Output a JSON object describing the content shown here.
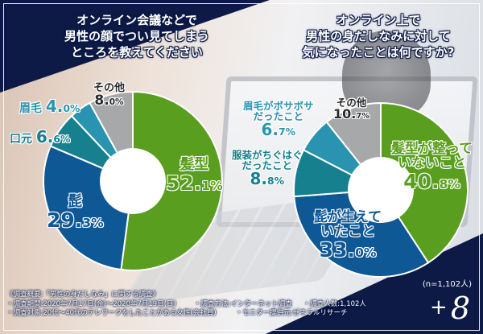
{
  "colors": {
    "navy": "#0d1a46",
    "green": "#5a9e1f",
    "blue": "#0f5896",
    "teal": "#17808f",
    "light_teal": "#2a94b0",
    "gray": "#a7a8aa",
    "label_teal": "#1d7f93"
  },
  "left_chart": {
    "title_lines": [
      "オンライン会議などで",
      "男性の顔でつい見てしまう",
      "ところを教えてください"
    ],
    "segments": [
      {
        "label": "髪型",
        "value": "52.1",
        "pct_int": "52.",
        "pct_dec": "1%"
      },
      {
        "label": "髭",
        "value": "29.3",
        "pct_int": "29.",
        "pct_dec": "3%"
      },
      {
        "label": "口元",
        "value": "6.6",
        "pct_int": "6.",
        "pct_dec": "6%"
      },
      {
        "label": "眉毛",
        "value": "4.0",
        "pct_int": "4.",
        "pct_dec": "0%"
      },
      {
        "label": "その他",
        "value": "8.0",
        "pct_int": "8.",
        "pct_dec": "0%"
      }
    ]
  },
  "right_chart": {
    "title_lines": [
      "オンライン上で",
      "男性の身だしなみに対して",
      "気になったことは何ですか?"
    ],
    "segments": [
      {
        "label_lines": [
          "髪型が整って",
          "いないこと"
        ],
        "value": "40.8",
        "pct_int": "40.",
        "pct_dec": "8%"
      },
      {
        "label_lines": [
          "髭が生えて",
          "いたこと"
        ],
        "value": "33.0",
        "pct_int": "33.",
        "pct_dec": "0%"
      },
      {
        "label_lines": [
          "服装がちぐはぐ",
          "だったこと"
        ],
        "value": "8.8",
        "pct_int": "8.",
        "pct_dec": "8%"
      },
      {
        "label_lines": [
          "眉毛がボサボサ",
          "だったこと"
        ],
        "value": "6.7",
        "pct_int": "6.",
        "pct_dec": "7%"
      },
      {
        "label_lines": [
          "その他"
        ],
        "value": "10.7",
        "pct_int": "10.",
        "pct_dec": "7%"
      }
    ]
  },
  "footer": {
    "heading": "《調査概要:「男性の身だしなみ」に関する調査》",
    "period": "・調査期間:2020年7月17日(金)〜2020年7月19日(日)",
    "method": "・調査方法:インターネット調査",
    "count": "・調査人数:1,102人",
    "target": "・調査対象:20代〜40代のテレワークをしたことがある女性(会社員)",
    "provider": "・モニター提供元:ゼネラルリサーチ"
  },
  "sample_size": "(n=1,102人)",
  "brand": {
    "plus": "+",
    "eight": "8"
  },
  "chart_data": [
    {
      "type": "pie",
      "title": "オンライン会議などで男性の顔でつい見てしまうところを教えてください",
      "categories": [
        "髪型",
        "髭",
        "口元",
        "眉毛",
        "その他"
      ],
      "values": [
        52.1,
        29.3,
        6.6,
        4.0,
        8.0
      ],
      "unit": "%",
      "colors": [
        "#5a9e1f",
        "#0f5896",
        "#17808f",
        "#2a94b0",
        "#a7a8aa"
      ],
      "donut": true,
      "start_angle": "12 o'clock, clockwise",
      "n": 1102
    },
    {
      "type": "pie",
      "title": "オンライン上で男性の身だしなみに対して気になったことは何ですか?",
      "categories": [
        "髪型が整っていないこと",
        "髭が生えていたこと",
        "服装がちぐはぐだったこと",
        "眉毛がボサボサだったこと",
        "その他"
      ],
      "values": [
        40.8,
        33.0,
        8.8,
        6.7,
        10.7
      ],
      "unit": "%",
      "colors": [
        "#5a9e1f",
        "#0f5896",
        "#17808f",
        "#2a94b0",
        "#a7a8aa"
      ],
      "donut": true,
      "start_angle": "12 o'clock, clockwise",
      "n": 1102
    }
  ]
}
